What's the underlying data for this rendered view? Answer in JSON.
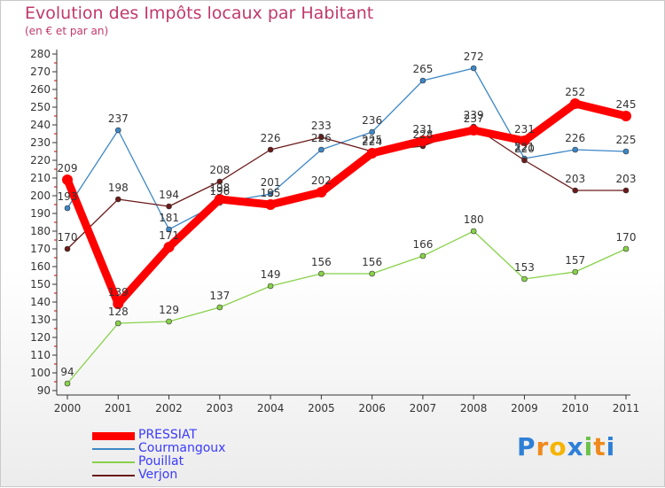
{
  "header": {
    "title": "Evolution des Impôts locaux par Habitant",
    "subtitle": "(en € et par an)"
  },
  "brand": {
    "name": "Proxiti",
    "letters": [
      "P",
      "r",
      "o",
      "x",
      "i",
      "t",
      "i"
    ]
  },
  "chart_data": {
    "type": "line",
    "title": "Evolution des Impôts locaux par Habitant",
    "subtitle": "(en € et par an)",
    "xlabel": "",
    "ylabel": "",
    "ylim": [
      90,
      280
    ],
    "ytick_step": 10,
    "grid": false,
    "legend_position": "bottom-left",
    "categories": [
      "2000",
      "2001",
      "2002",
      "2003",
      "2004",
      "2005",
      "2006",
      "2007",
      "2008",
      "2009",
      "2010",
      "2011"
    ],
    "series": [
      {
        "name": "PRESSIAT",
        "color": "#ff0000",
        "emphasis": true,
        "values": [
          209,
          139,
          171,
          198,
          195,
          202,
          224,
          231,
          237,
          231,
          252,
          245
        ]
      },
      {
        "name": "Courmangoux",
        "color": "#3d87c6",
        "emphasis": false,
        "values": [
          193,
          237,
          181,
          196,
          201,
          226,
          236,
          265,
          272,
          221,
          226,
          225
        ]
      },
      {
        "name": "Pouillat",
        "color": "#88d14a",
        "emphasis": false,
        "values": [
          94,
          128,
          129,
          137,
          149,
          156,
          156,
          166,
          180,
          153,
          157,
          170
        ]
      },
      {
        "name": "Verjon",
        "color": "#6b1a1a",
        "emphasis": false,
        "values": [
          170,
          198,
          194,
          208,
          226,
          233,
          225,
          228,
          239,
          220,
          203,
          203
        ]
      }
    ]
  }
}
